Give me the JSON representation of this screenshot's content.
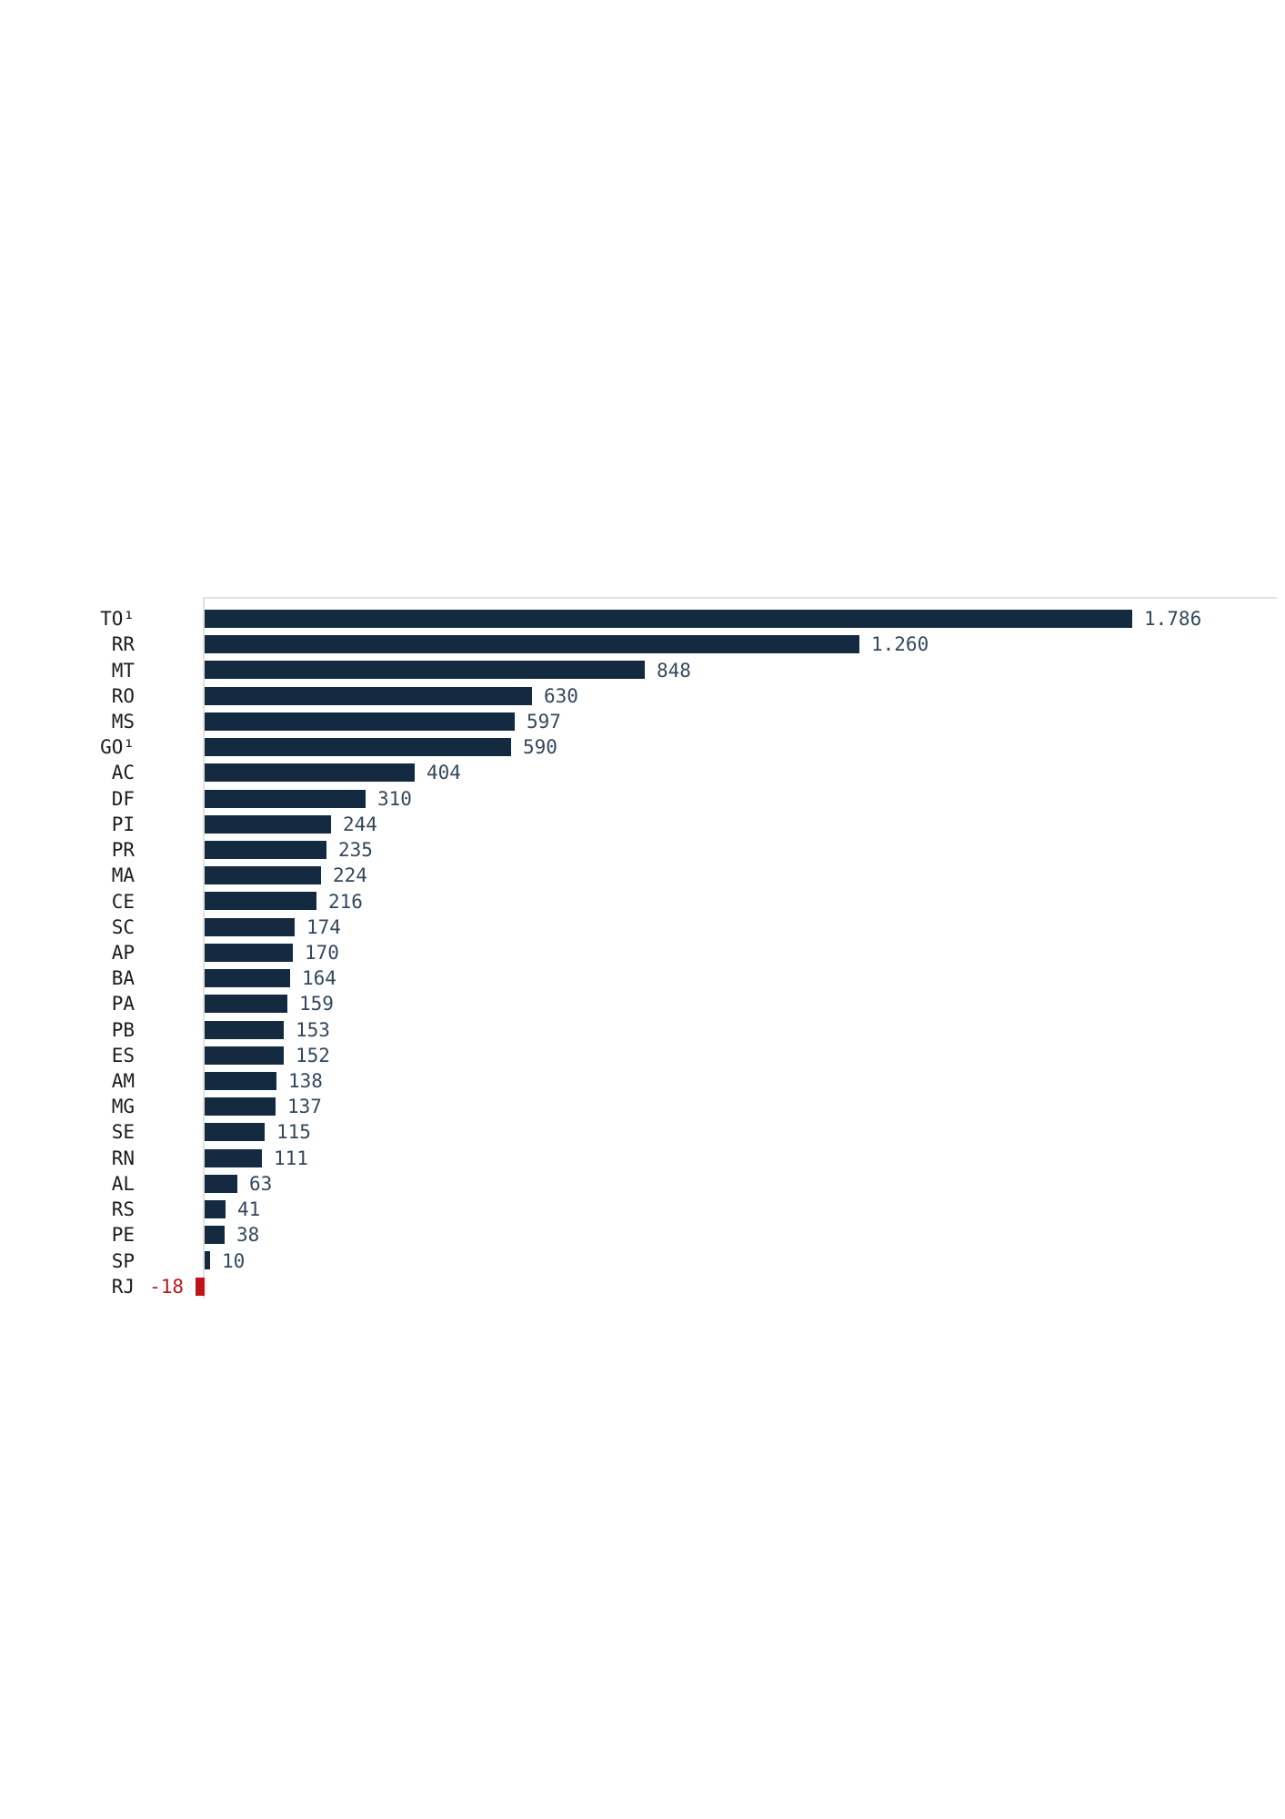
{
  "chart_data": {
    "type": "bar",
    "orientation": "horizontal",
    "title": "",
    "xlabel": "",
    "ylabel": "",
    "xlim": [
      -18,
      1786
    ],
    "grid": "top-line-only",
    "legend": "none",
    "value_format": "dot-thousands-separator",
    "categories": [
      "TO¹",
      "RR",
      "MT",
      "RO",
      "MS",
      "GO¹",
      "AC",
      "DF",
      "PI",
      "PR",
      "MA",
      "CE",
      "SC",
      "AP",
      "BA",
      "PA",
      "PB",
      "ES",
      "AM",
      "MG",
      "SE",
      "RN",
      "AL",
      "RS",
      "PE",
      "SP",
      "RJ"
    ],
    "values": [
      1786,
      1260,
      848,
      630,
      597,
      590,
      404,
      310,
      244,
      235,
      224,
      216,
      174,
      170,
      164,
      159,
      153,
      152,
      138,
      137,
      115,
      111,
      63,
      41,
      38,
      10,
      -18
    ],
    "value_labels": [
      "1.786",
      "1.260",
      "848",
      "630",
      "597",
      "590",
      "404",
      "310",
      "244",
      "235",
      "224",
      "216",
      "174",
      "170",
      "164",
      "159",
      "153",
      "152",
      "138",
      "137",
      "115",
      "111",
      "63",
      "41",
      "38",
      "10",
      "-18"
    ],
    "colors": {
      "positive_bar": "#142a40",
      "negative_bar": "#c01418",
      "negative_value_text": "#c01418",
      "value_text": "#33485c",
      "category_text": "#1d1d1d",
      "axis_and_grid": "#dde2e6",
      "background": "#ffffff"
    }
  }
}
